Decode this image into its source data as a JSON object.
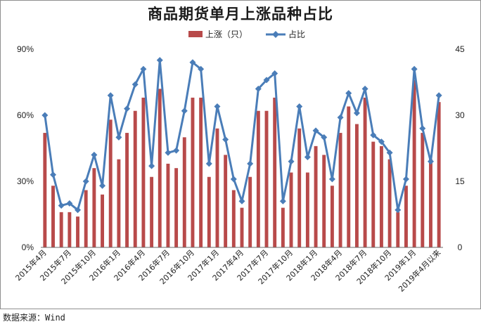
{
  "chart_data": {
    "type": "bar",
    "title": "商品期货单月上涨品种占比",
    "legend": {
      "position": "top-center"
    },
    "grid": false,
    "colors": {
      "bar": "#b84a4a",
      "line": "#4a7db8"
    },
    "y_left": {
      "ylim": [
        0,
        90
      ],
      "ticks": [
        "0%",
        "30%",
        "60%",
        "90%"
      ],
      "unit": "%"
    },
    "y_right": {
      "ylim": [
        0,
        45
      ],
      "ticks": [
        "0",
        "15",
        "30",
        "45"
      ]
    },
    "x_ticks": [
      "2015年4月",
      "2015年7月",
      "2015年10月",
      "2016年1月",
      "2016年4月",
      "2016年7月",
      "2016年10月",
      "2017年1月",
      "2017年4月",
      "2017年7月",
      "2017年10月",
      "2018年1月",
      "2018年4月",
      "2018年7月",
      "2018年10月",
      "2019年1月",
      "2019年4月以来"
    ],
    "series": [
      {
        "name": "上涨（只）",
        "type": "bar",
        "axis": "right",
        "values": [
          26,
          14,
          8,
          8,
          7,
          13,
          18,
          12,
          29,
          20,
          26,
          31,
          34,
          16,
          36,
          19,
          18,
          25,
          34,
          34,
          16,
          27,
          21,
          13,
          9,
          16,
          31,
          31,
          34,
          9,
          17,
          27,
          17,
          23,
          21,
          14,
          26,
          32,
          28,
          34,
          24,
          23,
          20,
          8,
          14,
          38,
          26,
          20,
          33
        ]
      },
      {
        "name": "占比",
        "type": "line",
        "axis": "left",
        "values": [
          60,
          33,
          19,
          20,
          17,
          30,
          42,
          28,
          69,
          50,
          63,
          74,
          81,
          37,
          85,
          43,
          44,
          62,
          84,
          81,
          38,
          64,
          49,
          31,
          21,
          38,
          72,
          76,
          79,
          21,
          39,
          64,
          41,
          53,
          50,
          31,
          59,
          70,
          61,
          72,
          51,
          48,
          43,
          17,
          31,
          81,
          54,
          39,
          69
        ]
      }
    ]
  },
  "source": "数据来源：Wind"
}
